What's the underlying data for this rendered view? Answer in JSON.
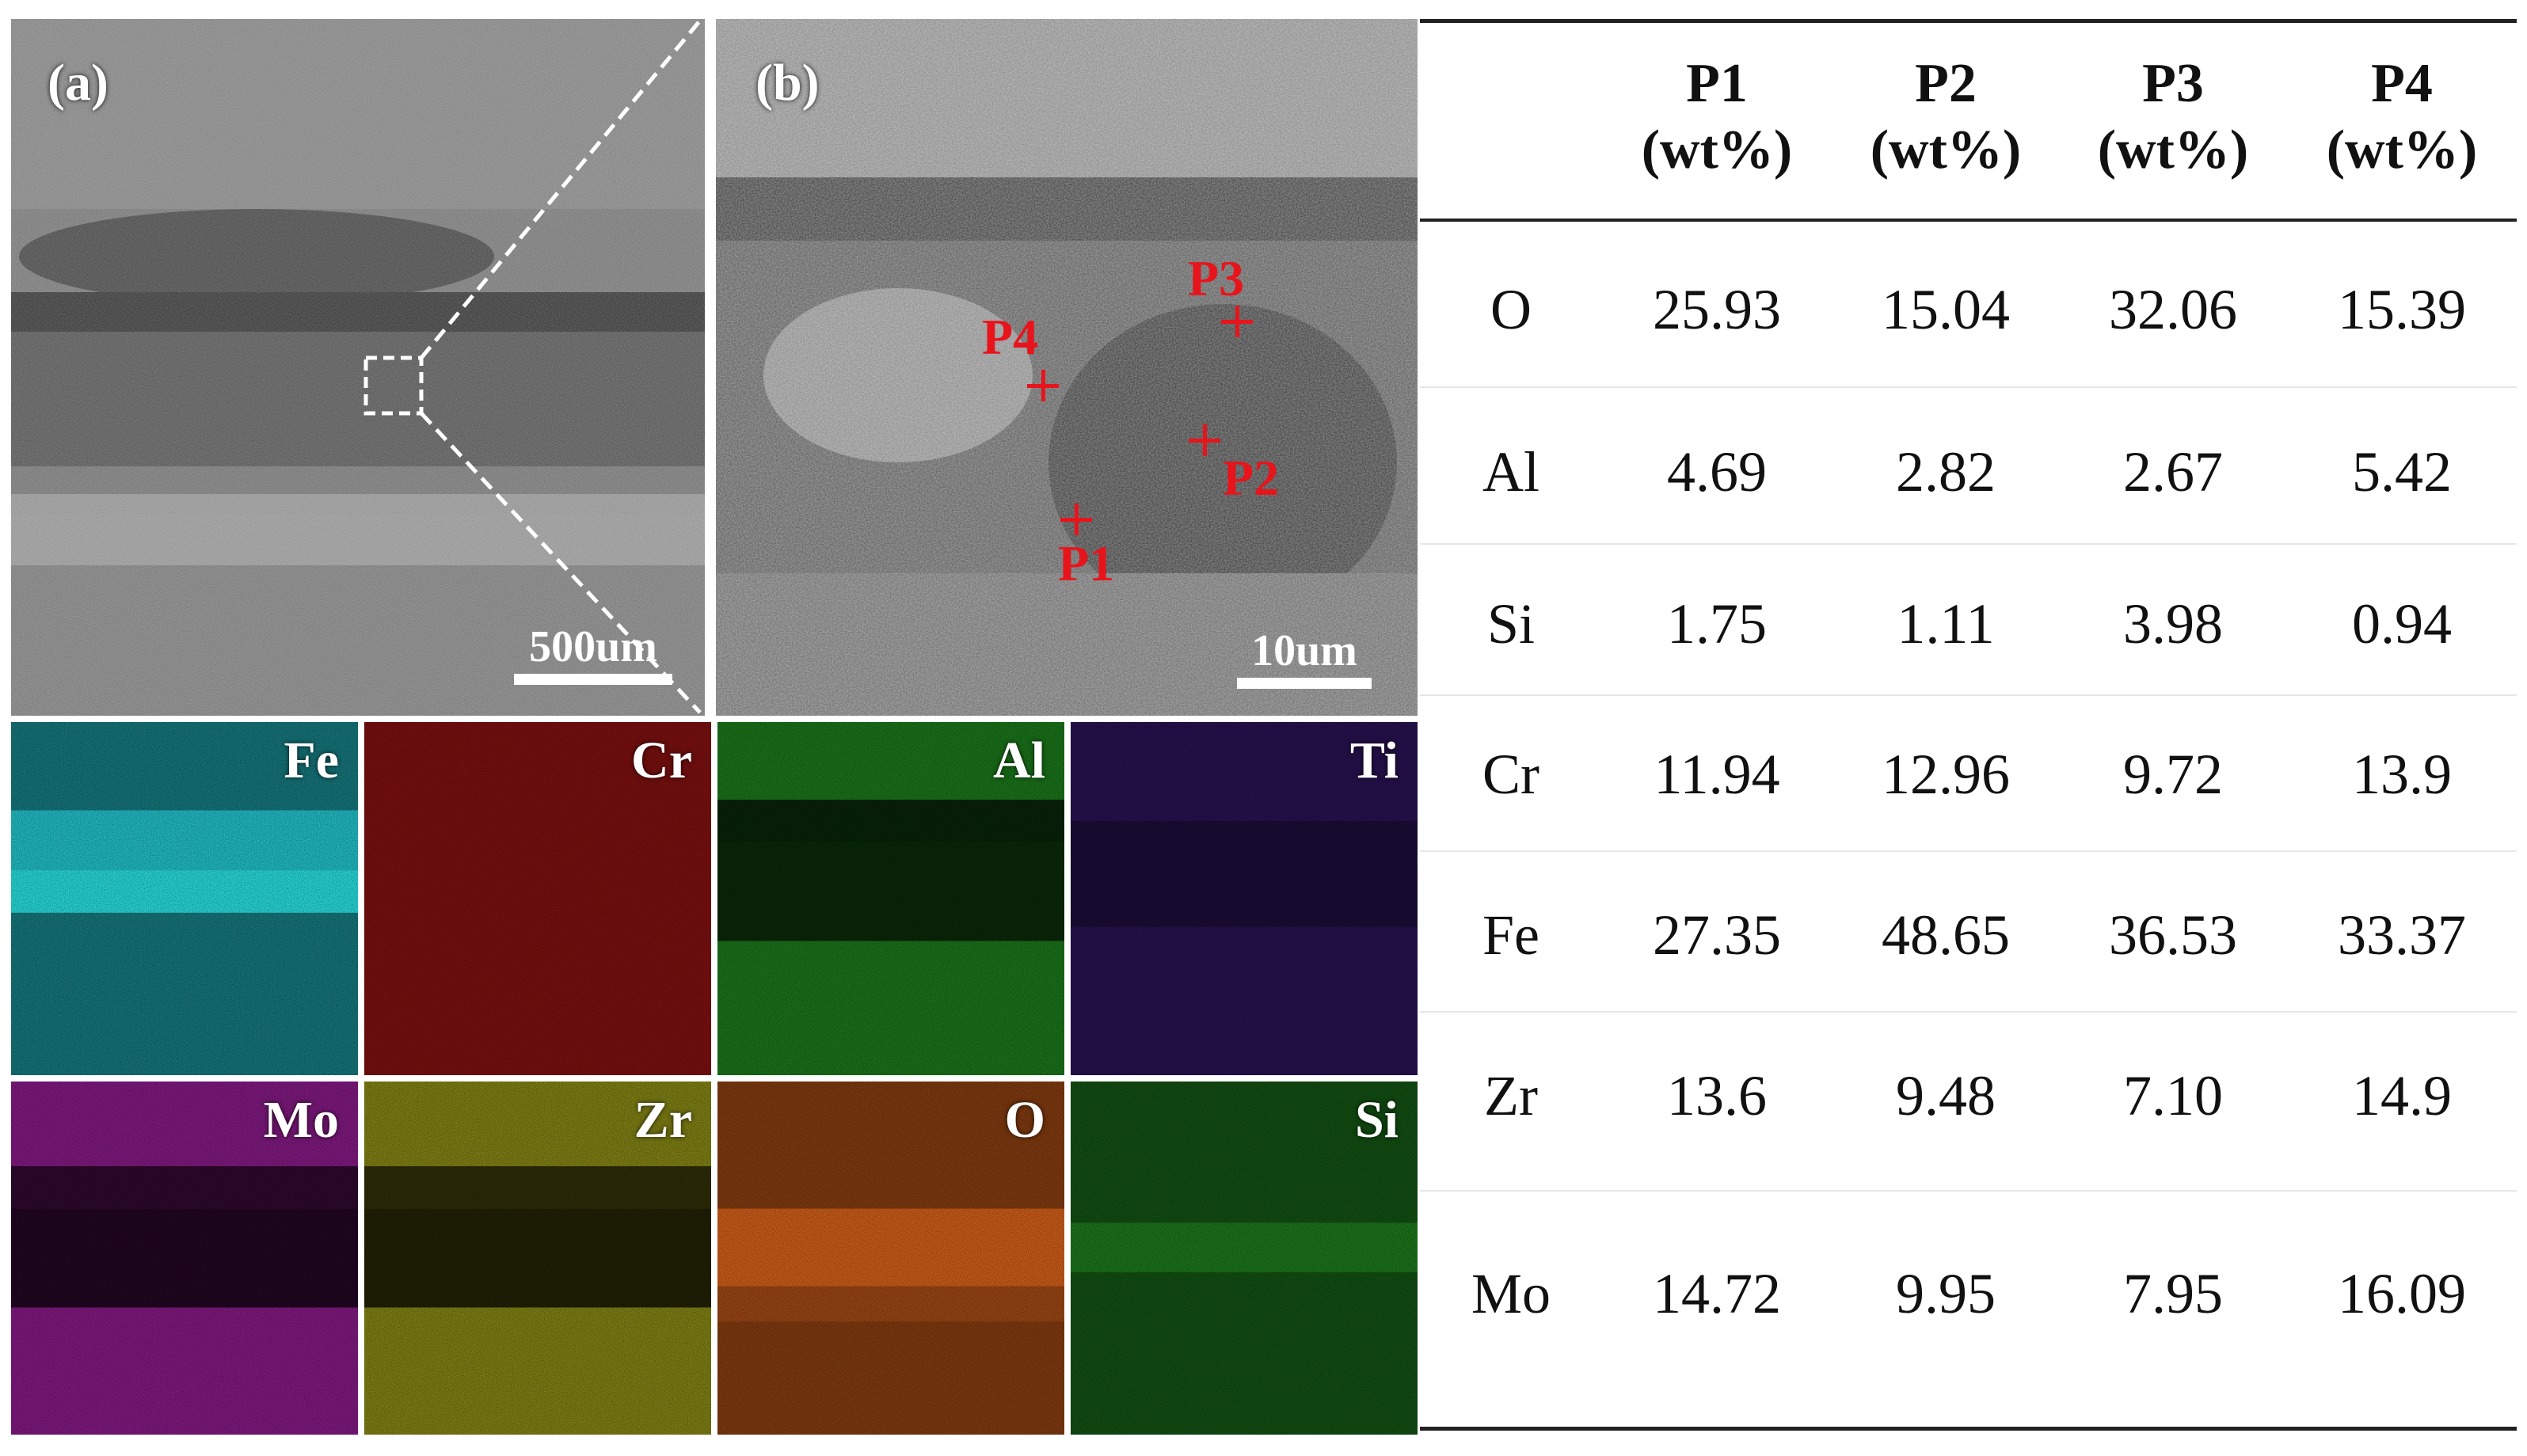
{
  "panels": {
    "a": {
      "label": "(a)",
      "scale_label": "500um"
    },
    "b": {
      "label": "(b)",
      "scale_label": "10um"
    },
    "points": [
      "P1",
      "P2",
      "P3",
      "P4"
    ]
  },
  "maps": [
    {
      "element": "Fe",
      "color": "#20b8c0"
    },
    {
      "element": "Cr",
      "color": "#c01818"
    },
    {
      "element": "Al",
      "color": "#28b428"
    },
    {
      "element": "Ti",
      "color": "#3c1a7a"
    },
    {
      "element": "Mo",
      "color": "#c826c8"
    },
    {
      "element": "Zr",
      "color": "#c8c820"
    },
    {
      "element": "O",
      "color": "#c85a18"
    },
    {
      "element": "Si",
      "color": "#1c7a1c"
    }
  ],
  "table": {
    "headers": [
      {
        "name": "P1",
        "unit": "(wt%)"
      },
      {
        "name": "P2",
        "unit": "(wt%)"
      },
      {
        "name": "P3",
        "unit": "(wt%)"
      },
      {
        "name": "P4",
        "unit": "(wt%)"
      }
    ],
    "rows": [
      {
        "element": "O",
        "values": [
          "25.93",
          "15.04",
          "32.06",
          "15.39"
        ]
      },
      {
        "element": "Al",
        "values": [
          "4.69",
          "2.82",
          "2.67",
          "5.42"
        ]
      },
      {
        "element": "Si",
        "values": [
          "1.75",
          "1.11",
          "3.98",
          "0.94"
        ]
      },
      {
        "element": "Cr",
        "values": [
          "11.94",
          "12.96",
          "9.72",
          "13.9"
        ]
      },
      {
        "element": "Fe",
        "values": [
          "27.35",
          "48.65",
          "36.53",
          "33.37"
        ]
      },
      {
        "element": "Zr",
        "values": [
          "13.6",
          "9.48",
          "7.10",
          "14.9"
        ]
      },
      {
        "element": "Mo",
        "values": [
          "14.72",
          "9.95",
          "7.95",
          "16.09"
        ]
      }
    ]
  }
}
